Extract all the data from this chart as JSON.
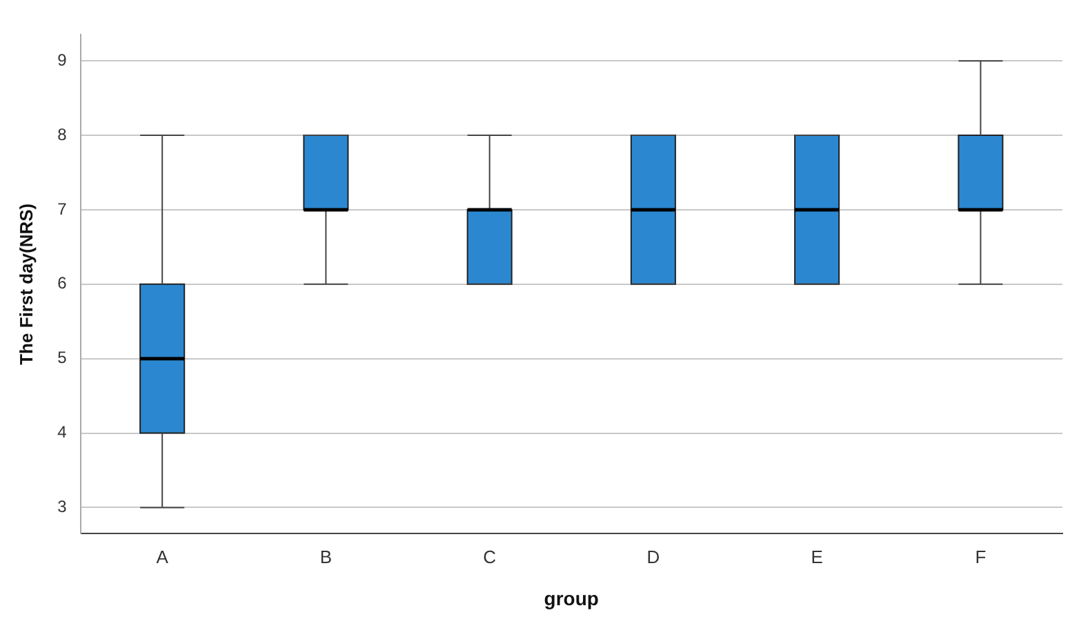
{
  "chart_data": {
    "type": "box",
    "xlabel": "group",
    "ylabel": "The First day(NRS)",
    "categories": [
      "A",
      "B",
      "C",
      "D",
      "E",
      "F"
    ],
    "series": [
      {
        "color": "#2b88d0",
        "boxes": [
          {
            "low": 3,
            "q1": 4,
            "median": 5,
            "q3": 6,
            "high": 8
          },
          {
            "low": 6,
            "q1": 7,
            "median": 7,
            "q3": 8,
            "high": 8
          },
          {
            "low": 6,
            "q1": 6,
            "median": 7,
            "q3": 7,
            "high": 8
          },
          {
            "low": 6,
            "q1": 6,
            "median": 7,
            "q3": 8,
            "high": 8
          },
          {
            "low": 6,
            "q1": 6,
            "median": 7,
            "q3": 8,
            "high": 8
          },
          {
            "low": 6,
            "q1": 7,
            "median": 7,
            "q3": 8,
            "high": 9
          }
        ]
      }
    ],
    "ylim": [
      2.65,
      9.35
    ],
    "yticks": [
      3,
      4,
      5,
      6,
      7,
      8,
      9
    ],
    "grid": "y",
    "legend": false
  }
}
